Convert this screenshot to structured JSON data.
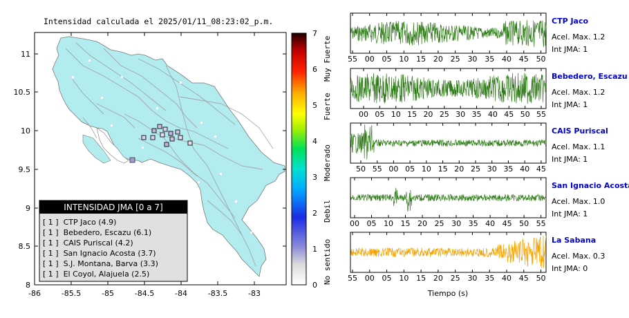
{
  "title": "Intensidad calculada el 2025/01/11_08:23:02_p.m.",
  "map": {
    "y_ticks": [
      "11",
      "10.5",
      "10",
      "9.5",
      "9",
      "8.5",
      "8"
    ],
    "x_ticks": [
      "-86",
      "-85.5",
      "-85",
      "-84.5",
      "-84",
      "-83.5",
      "-83"
    ]
  },
  "colorbar": {
    "ticks": [
      "0",
      "1",
      "2",
      "3",
      "4",
      "5",
      "6",
      "7"
    ],
    "categories": [
      "No sentido",
      "Debil",
      "Moderado",
      "Fuerte",
      "Muy Fuerte"
    ]
  },
  "legend": {
    "header": "INTENSIDAD JMA [0 a 7]",
    "items": [
      "[ 1 ]  CTP Jaco (4.9)",
      "[ 1 ]  Bebedero, Escazu (6.1)",
      "[ 1 ]  CAIS Puriscal (4.2)",
      "[ 1 ]  San Ignacio Acosta (3.7)",
      "[ 1 ]  S.J. Montana, Barva (3.3)",
      "[ 1 ]  El Coyol, Alajuela (2.5)"
    ]
  },
  "traces": [
    {
      "name": "CTP Jaco",
      "acel": "Acel. Max. 1.2",
      "jma": "Int JMA: 1",
      "color": "#2b7a14",
      "ticks": [
        "55",
        "00",
        "05",
        "10",
        "15",
        "20",
        "25",
        "30",
        "35",
        "40",
        "45",
        "50"
      ]
    },
    {
      "name": "Bebedero, Escazu",
      "acel": "Acel. Max. 1.2",
      "jma": "Int JMA: 1",
      "color": "#2b7a14",
      "ticks": [
        "00",
        "05",
        "10",
        "15",
        "20",
        "25",
        "30",
        "35",
        "40",
        "45",
        "50",
        "55"
      ]
    },
    {
      "name": "CAIS Puriscal",
      "acel": "Acel. Max. 1.1",
      "jma": "Int JMA: 1",
      "color": "#2b7a14",
      "ticks": [
        "50",
        "55",
        "00",
        "05",
        "10",
        "15",
        "20",
        "25",
        "30",
        "35",
        "40",
        "45"
      ]
    },
    {
      "name": "San Ignacio Acosta",
      "acel": "Acel. Max. 1.0",
      "jma": "Int JMA: 1",
      "color": "#2b7a14",
      "ticks": [
        "00",
        "05",
        "10",
        "15",
        "20",
        "25",
        "30",
        "35",
        "40",
        "45",
        "50",
        "55"
      ]
    },
    {
      "name": "La Sabana",
      "acel": "Acel. Max. 0.3",
      "jma": "Int JMA: 0",
      "color": "#f5a300",
      "ticks": [
        "55",
        "00",
        "05",
        "10",
        "15",
        "20",
        "25",
        "30",
        "35",
        "40",
        "45",
        "50"
      ]
    }
  ],
  "xaxis_label": "Tiempo (s)",
  "colors": {
    "land": "#b3ecef",
    "green": "#2b7a14",
    "orange": "#f5a300",
    "station_label": "#0000cc"
  }
}
